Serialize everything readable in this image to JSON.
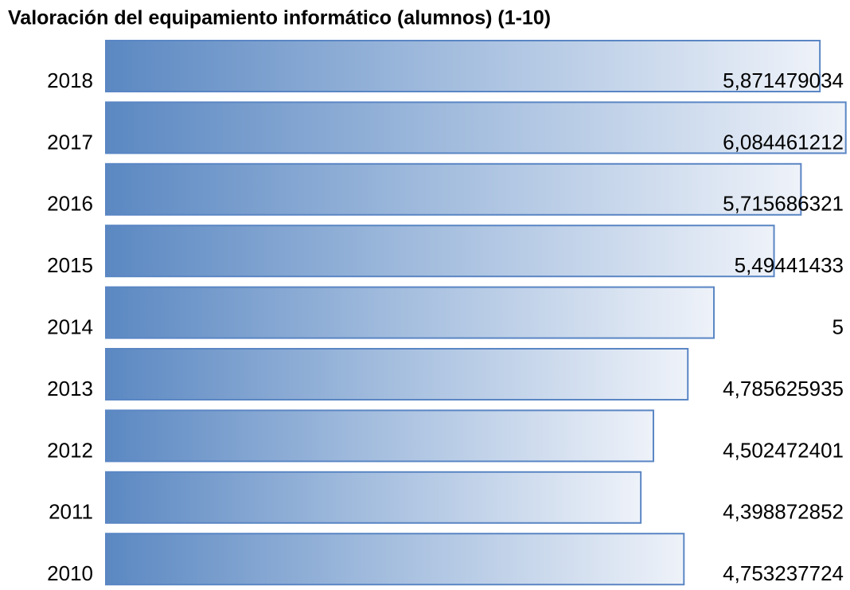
{
  "chart_data": {
    "type": "bar",
    "orientation": "horizontal",
    "title": "Valoración del equipamiento informático (alumnos) (1-10)",
    "categories": [
      "2018",
      "2017",
      "2016",
      "2015",
      "2014",
      "2013",
      "2012",
      "2011",
      "2010"
    ],
    "values": [
      5.871479034,
      6.084461212,
      5.715686321,
      5.49441433,
      5,
      4.785625935,
      4.502472401,
      4.398872852,
      4.753237724
    ],
    "value_labels": [
      "5,871479034",
      "6,084461212",
      "5,715686321",
      "5,49441433",
      "5",
      "4,785625935",
      "4,502472401",
      "4,398872852",
      "4,753237724"
    ],
    "color": "#5a86c4"
  }
}
